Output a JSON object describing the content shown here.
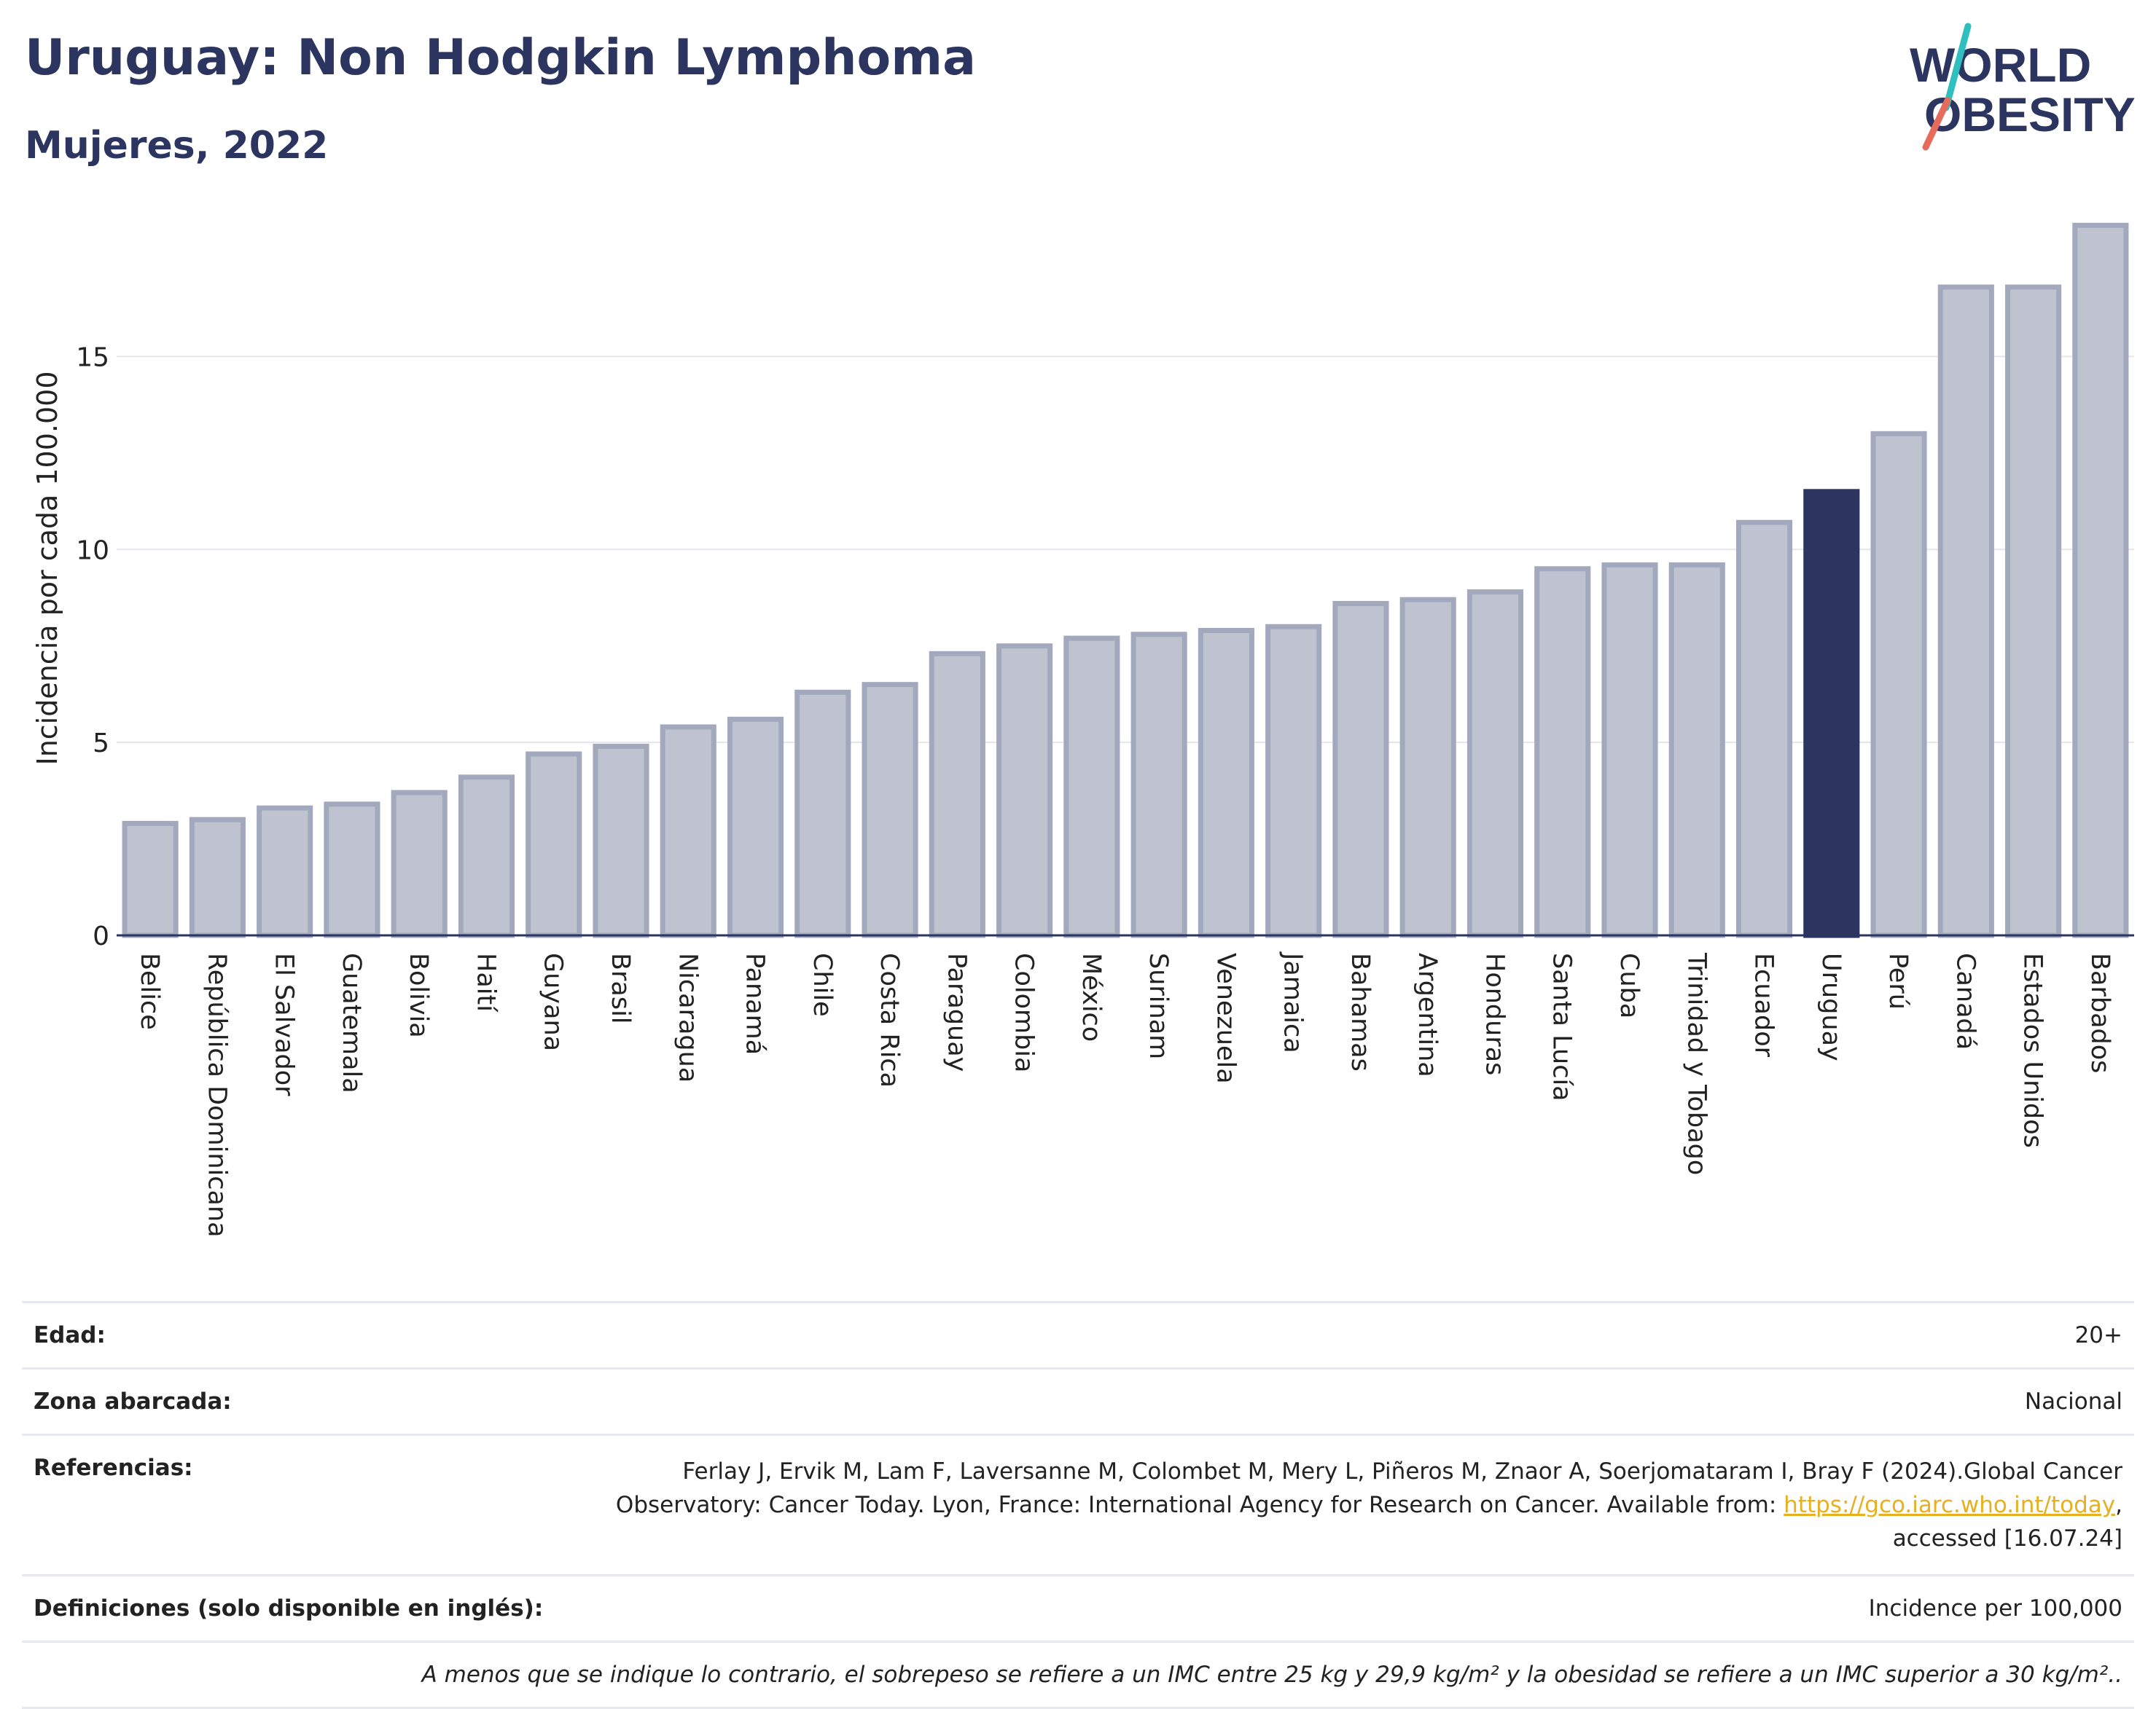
{
  "header": {
    "title": "Uruguay: Non Hodgkin Lymphoma",
    "subtitle": "Mujeres, 2022"
  },
  "logo": {
    "line1": "WORLD",
    "line2": "OBESITY"
  },
  "colors": {
    "bar": "#bfc3d0",
    "bar_border": "#a3a9bd",
    "highlight": "#2b3560",
    "text": "#2b3560",
    "grid": "#e4e6ee"
  },
  "chart_data": {
    "type": "bar",
    "title": "Uruguay: Non Hodgkin Lymphoma",
    "subtitle": "Mujeres, 2022",
    "ylabel": "Incidencia por cada 100.000",
    "xlabel": "",
    "ylim": [
      0,
      18.5
    ],
    "yticks": [
      0,
      5,
      10,
      15
    ],
    "grid": true,
    "highlight": "Uruguay",
    "categories": [
      "Belice",
      "República Dominicana",
      "El Salvador",
      "Guatemala",
      "Bolivia",
      "Haití",
      "Guyana",
      "Brasil",
      "Nicaragua",
      "Panamá",
      "Chile",
      "Costa Rica",
      "Paraguay",
      "Colombia",
      "México",
      "Surinam",
      "Venezuela",
      "Jamaica",
      "Bahamas",
      "Argentina",
      "Honduras",
      "Santa Lucía",
      "Cuba",
      "Trinidad y Tobago",
      "Ecuador",
      "Uruguay",
      "Perú",
      "Canadá",
      "Estados Unidos",
      "Barbados"
    ],
    "values": [
      2.9,
      3.0,
      3.3,
      3.4,
      3.7,
      4.1,
      4.7,
      4.9,
      5.4,
      5.6,
      6.3,
      6.5,
      7.3,
      7.5,
      7.7,
      7.8,
      7.9,
      8.0,
      8.6,
      8.7,
      8.9,
      9.5,
      9.6,
      9.6,
      10.7,
      11.5,
      13.0,
      16.8,
      16.8,
      18.4
    ]
  },
  "info": {
    "edad_label": "Edad:",
    "edad_value": "20+",
    "zona_label": "Zona abarcada:",
    "zona_value": "Nacional",
    "ref_label": "Referencias:",
    "ref_text_1": "Ferlay J, Ervik M, Lam F, Laversanne M, Colombet M, Mery L, Piñeros M, Znaor A, Soerjomataram I, Bray F (2024).Global Cancer Observatory: Cancer Today. Lyon, France: International Agency for Research on Cancer. Available from: ",
    "ref_link": "https://gco.iarc.who.int/today",
    "ref_text_2": ", accessed [16.07.24]",
    "def_label": "Definiciones (solo disponible en inglés):",
    "def_value": "Incidence per 100,000",
    "note": "A menos que se indique lo contrario, el sobrepeso se refiere a un IMC entre 25 kg y 29,9 kg/m² y la obesidad se refiere a un IMC superior a 30 kg/m².."
  }
}
